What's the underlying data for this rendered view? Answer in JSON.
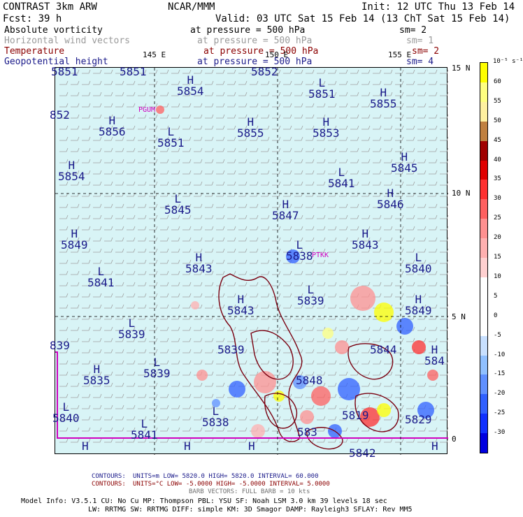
{
  "header": {
    "left_line1": "CONTRAST  3km ARW",
    "left_line2": "Fcst:    39 h",
    "center_line1": "NCAR/MMM",
    "init": "Init: 12 UTC Thu 13 Feb 14",
    "valid": "Valid: 03 UTC Sat 15 Feb 14 (13 ChT Sat 15 Feb 14)"
  },
  "fields": [
    {
      "name": "Absolute vorticity",
      "level": "at pressure =  500 hPa",
      "sm": "sm= 2",
      "color": "#000000"
    },
    {
      "name": "Horizontal wind vectors",
      "level": "at pressure =  500 hPa",
      "sm": "sm= 1",
      "color": "#9a9a9a"
    },
    {
      "name": "Temperature",
      "level": "at pressure =  500 hPa",
      "sm": "sm= 2",
      "color": "#8b0000"
    },
    {
      "name": "Geopotential height",
      "level": "at pressure =  500 hPa",
      "sm": "sm= 4",
      "color": "#1a1a8a"
    }
  ],
  "axes": {
    "lon_labels": [
      "145 E",
      "150 E",
      "155 E"
    ],
    "lat_labels": [
      "15 N",
      "10 N",
      "5 N",
      "0"
    ]
  },
  "station_labels": [
    "PGUM",
    "PTKK"
  ],
  "colorbar": {
    "unit": "10⁻⁵ s⁻¹",
    "ticks": [
      "60",
      "55",
      "50",
      "45",
      "40",
      "35",
      "30",
      "25",
      "20",
      "15",
      "10",
      "5",
      "0",
      "-5",
      "-10",
      "-15",
      "-20",
      "-25",
      "-30"
    ],
    "colors": [
      "#ffff00",
      "#ffff80",
      "#fff0a0",
      "#c08040",
      "#a00000",
      "#e00000",
      "#ff3030",
      "#ff6060",
      "#ff9090",
      "#ffb0b0",
      "#ffd0d0",
      "#ffffff",
      "#ffffff",
      "#ffffff",
      "#c8e0ff",
      "#90c0ff",
      "#6090ff",
      "#3060ff",
      "#1030ff",
      "#0000e0"
    ]
  },
  "height_labels": [
    {
      "type": "",
      "value": "5851"
    },
    {
      "type": "",
      "value": "5851"
    },
    {
      "type": "H",
      "value": "5854"
    },
    {
      "type": "",
      "value": "5852"
    },
    {
      "type": "L",
      "value": "5851"
    },
    {
      "type": "H",
      "value": "5855"
    },
    {
      "type": "",
      "value": "852"
    },
    {
      "type": "H",
      "value": "5856"
    },
    {
      "type": "L",
      "value": "5851"
    },
    {
      "type": "H",
      "value": "5855"
    },
    {
      "type": "H",
      "value": "5853"
    },
    {
      "type": "H",
      "value": "5854"
    },
    {
      "type": "H",
      "value": "5845"
    },
    {
      "type": "L",
      "value": "5841"
    },
    {
      "type": "H",
      "value": "5846"
    },
    {
      "type": "L",
      "value": "5845"
    },
    {
      "type": "H",
      "value": "5847"
    },
    {
      "type": "H",
      "value": "5849"
    },
    {
      "type": "H",
      "value": "5843"
    },
    {
      "type": "L",
      "value": "5838"
    },
    {
      "type": "H",
      "value": "5843"
    },
    {
      "type": "L",
      "value": "5840"
    },
    {
      "type": "L",
      "value": "5841"
    },
    {
      "type": "L",
      "value": "5839"
    },
    {
      "type": "H",
      "value": "5849"
    },
    {
      "type": "L",
      "value": "5839"
    },
    {
      "type": "H",
      "value": "5843"
    },
    {
      "type": "",
      "value": "839"
    },
    {
      "type": "",
      "value": "5839"
    },
    {
      "type": "",
      "value": "5844"
    },
    {
      "type": "H",
      "value": "584"
    },
    {
      "type": "L",
      "value": "5839"
    },
    {
      "type": "H",
      "value": "5835"
    },
    {
      "type": "",
      "value": "5848"
    },
    {
      "type": "L",
      "value": "5840"
    },
    {
      "type": "L",
      "value": "5838"
    },
    {
      "type": "",
      "value": "5819"
    },
    {
      "type": "",
      "value": "5829"
    },
    {
      "type": "L",
      "value": "5841"
    },
    {
      "type": "",
      "value": "583"
    },
    {
      "type": "",
      "value": "5842"
    },
    {
      "type": "H",
      "value": ""
    },
    {
      "type": "H",
      "value": ""
    },
    {
      "type": "H",
      "value": ""
    },
    {
      "type": "H",
      "value": ""
    }
  ],
  "footer": {
    "contours1_label": "CONTOURS:",
    "contours1": "UNITS=m  LOW=  5820.0      HIGH=  5820.0      INTERVAL=    60.000",
    "contours2_label": "CONTOURS:",
    "contours2": "UNITS=°C  LOW= -5.0000      HIGH= -5.0000      INTERVAL=    5.0000",
    "barbs": "BARB VECTORS:  FULL BARB = 10 kts",
    "model1": "Model Info: V3.5.1    CU: No Cu     MP: Thompson    PBL: YSU     SF: Noah LSM    3.0 km  39 levels   18 sec",
    "model2": "LW: RRTMG   SW: RRTMG  DIFF: simple KM: 3D Smagor DAMP: Rayleigh3  SFLAY: Rev MM5"
  }
}
